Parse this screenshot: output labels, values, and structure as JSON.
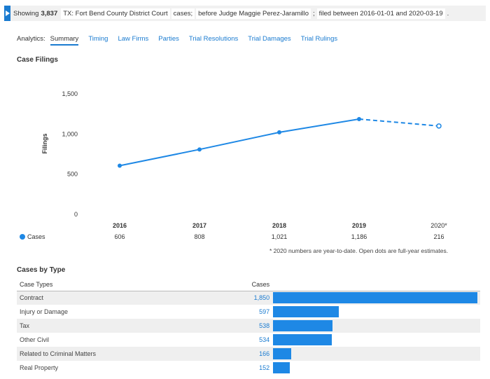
{
  "filter": {
    "prefix": "Showing",
    "count": "3,837",
    "court_chip": "TX: Fort Bend County District Court",
    "cases_word": "cases;",
    "judge_chip": "before Judge Maggie Perez-Jaramillo",
    "semicolon": ";",
    "filed_chip": "filed between 2016-01-01 and 2020-03-19",
    "period": "."
  },
  "analytics": {
    "label": "Analytics:",
    "tabs": [
      "Summary",
      "Timing",
      "Law Firms",
      "Parties",
      "Trial Resolutions",
      "Trial Damages",
      "Trial Rulings"
    ],
    "active": "Summary"
  },
  "filings_title": "Case Filings",
  "chart_data": {
    "type": "line",
    "ylabel": "Filings",
    "categories": [
      "2016",
      "2017",
      "2018",
      "2019",
      "2020*"
    ],
    "yticks": [
      0,
      500,
      1000,
      1500
    ],
    "ytick_labels": [
      "0",
      "500",
      "1,000",
      "1,500"
    ],
    "ylim": [
      0,
      1700
    ],
    "grid": false,
    "series": [
      {
        "name": "Cases",
        "values": [
          606,
          808,
          1021,
          1186,
          216
        ],
        "value_labels": [
          "606",
          "808",
          "1,021",
          "1,186",
          "216"
        ],
        "estimate_2020": 1100,
        "color": "#1e88e5"
      }
    ],
    "legend_placement": "left of value row"
  },
  "footnote": "* 2020 numbers are year-to-date. Open dots are full-year estimates.",
  "types_title": "Cases by Type",
  "types_table": {
    "headers": {
      "type": "Case Types",
      "cases": "Cases"
    },
    "max": 1850,
    "bar_color": "#1e88e5",
    "rows": [
      {
        "name": "Contract",
        "cases": "1,850",
        "value": 1850
      },
      {
        "name": "Injury or Damage",
        "cases": "597",
        "value": 597
      },
      {
        "name": "Tax",
        "cases": "538",
        "value": 538
      },
      {
        "name": "Other Civil",
        "cases": "534",
        "value": 534
      },
      {
        "name": "Related to Criminal Matters",
        "cases": "166",
        "value": 166
      },
      {
        "name": "Real Property",
        "cases": "152",
        "value": 152
      }
    ]
  }
}
